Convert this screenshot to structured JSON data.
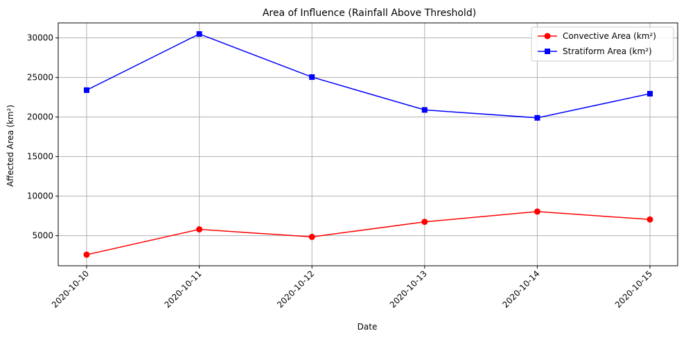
{
  "chart_data": {
    "type": "line",
    "title": "Area of Influence (Rainfall Above Threshold)",
    "xlabel": "Date",
    "ylabel": "Affected Area (km²)",
    "categories": [
      "2020-10-10",
      "2020-10-11",
      "2020-10-12",
      "2020-10-13",
      "2020-10-14",
      "2020-10-15"
    ],
    "y_ticks": [
      5000,
      10000,
      15000,
      20000,
      25000,
      30000
    ],
    "ylim": [
      1200,
      31900
    ],
    "grid": true,
    "legend_position": "top-right",
    "series": [
      {
        "name": "Convective Area (km²)",
        "color": "#ff0000",
        "marker": "circle",
        "values": [
          2600,
          5800,
          4850,
          6750,
          8050,
          7050
        ]
      },
      {
        "name": "Stratiform Area (km²)",
        "color": "#0000ff",
        "marker": "square",
        "values": [
          23400,
          30500,
          25050,
          20900,
          19900,
          22950
        ]
      }
    ]
  }
}
